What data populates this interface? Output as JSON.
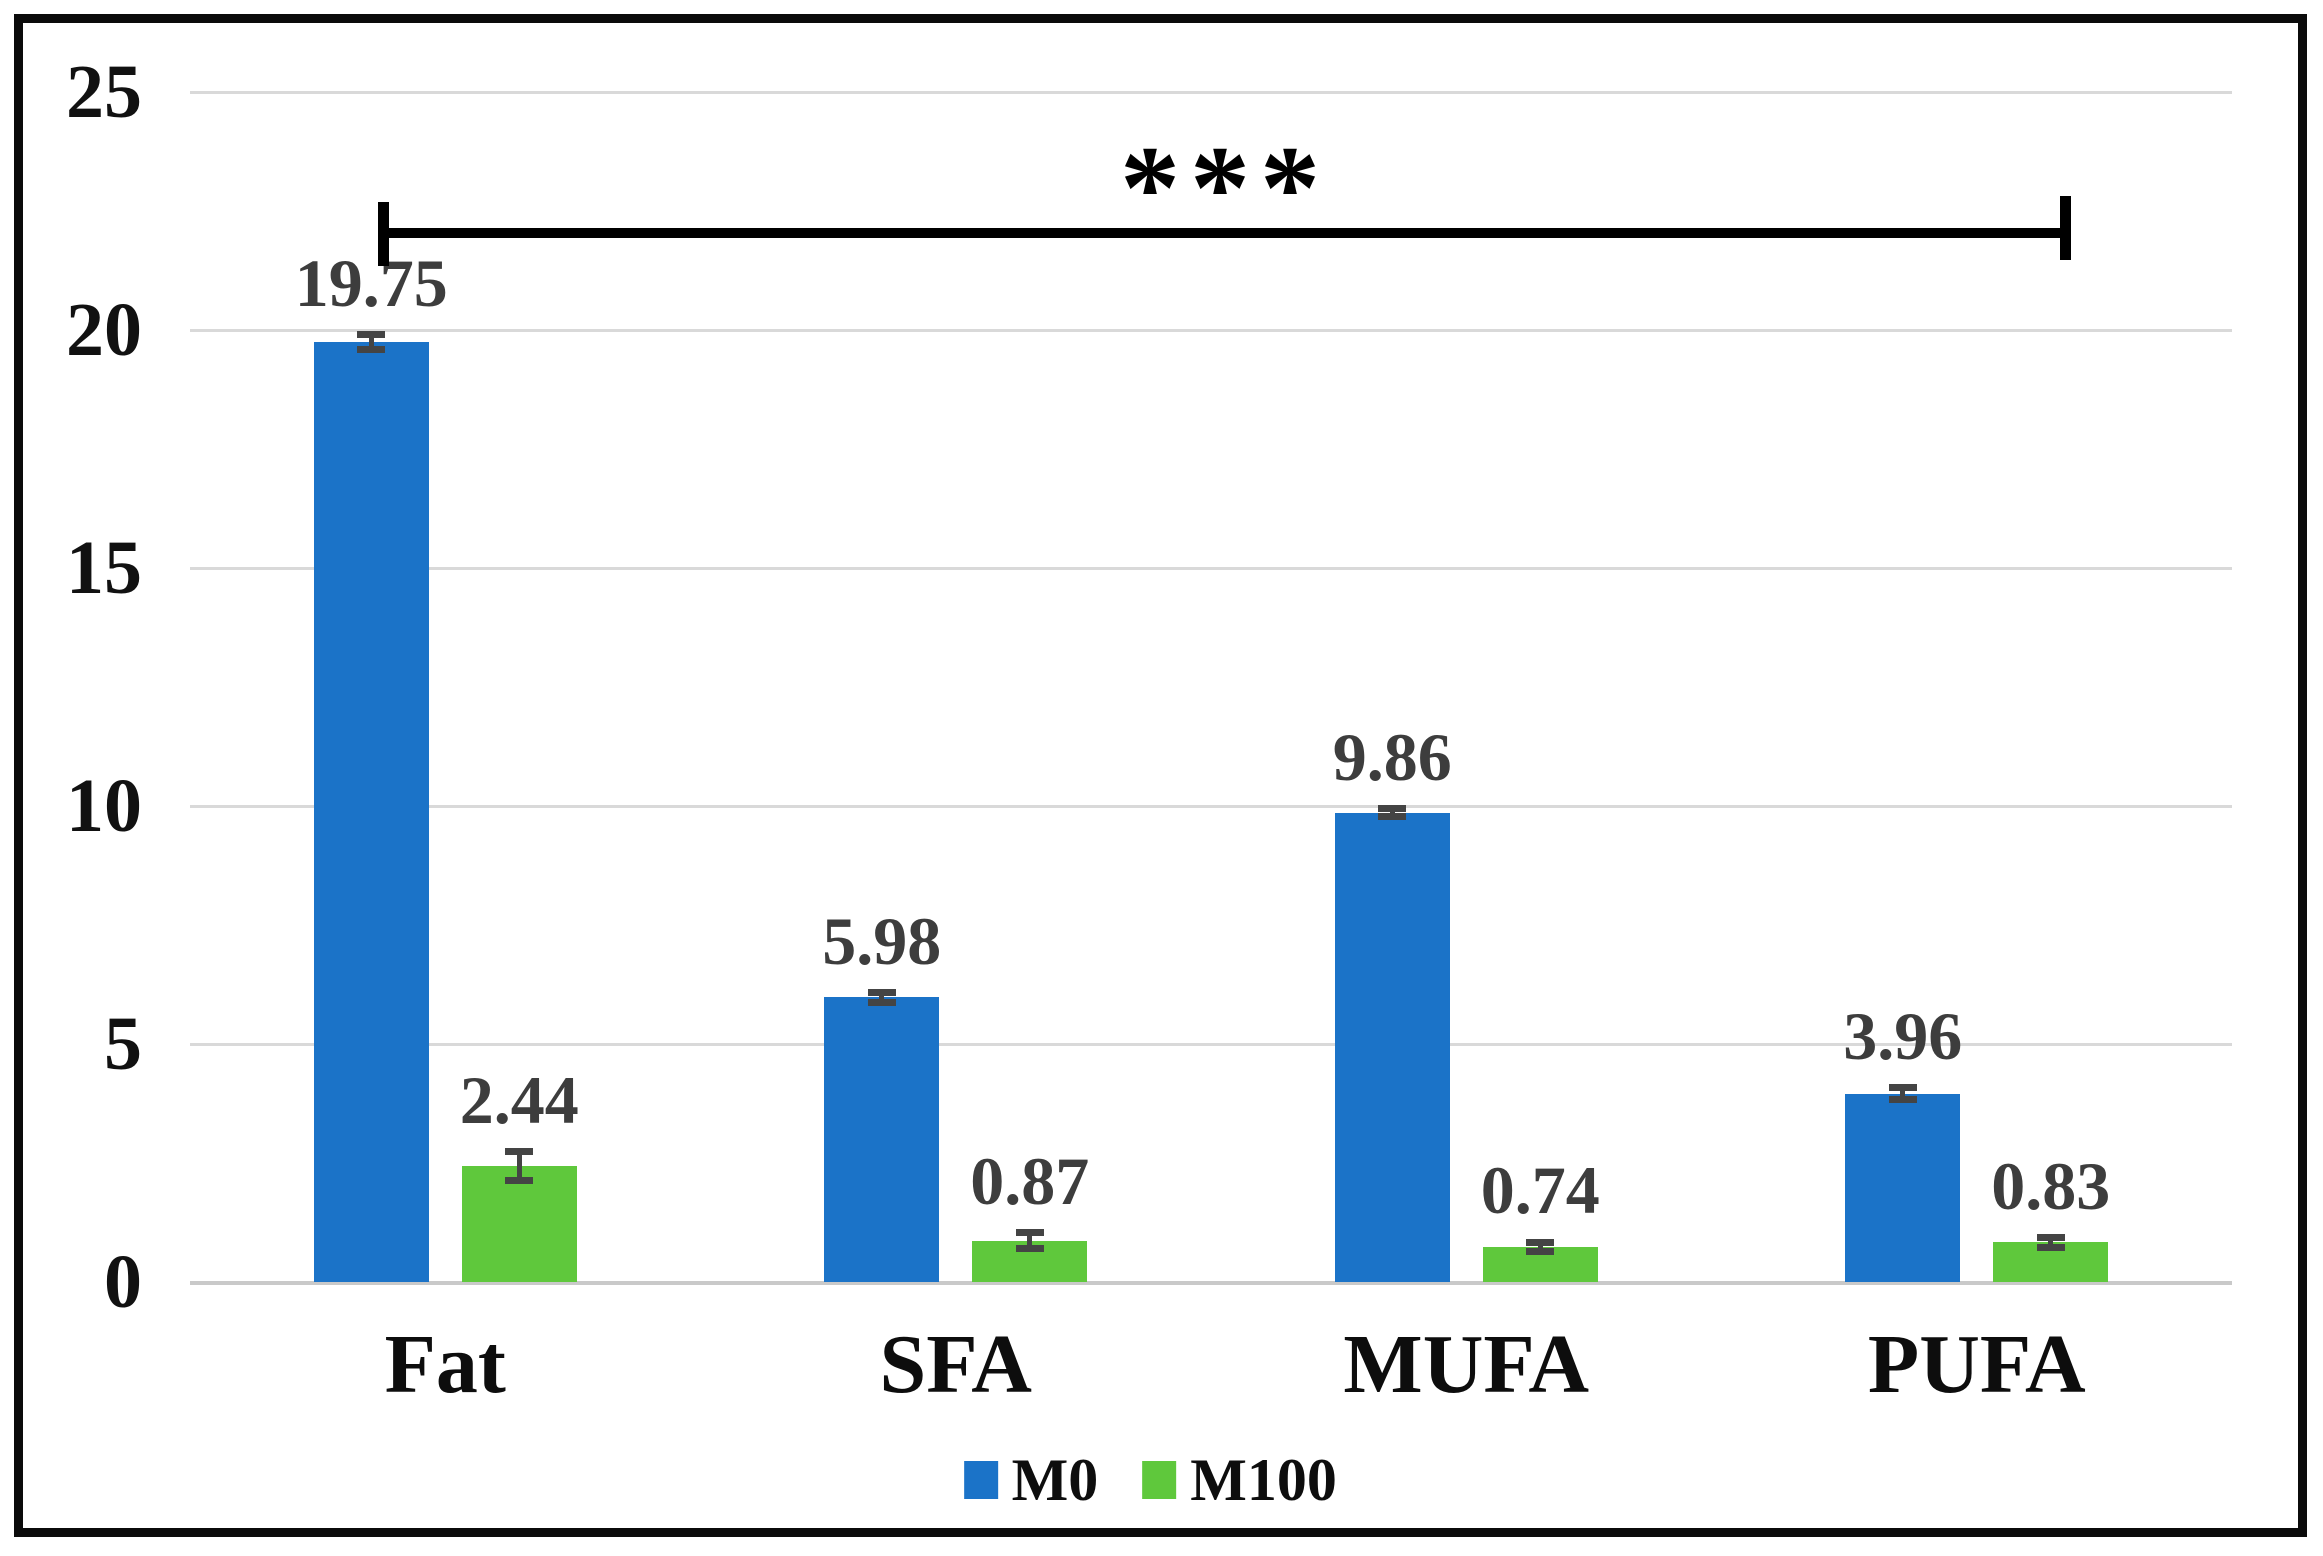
{
  "chart_data": {
    "type": "bar",
    "title": "",
    "xlabel": "",
    "ylabel": "",
    "categories": [
      "Fat",
      "SFA",
      "MUFA",
      "PUFA"
    ],
    "series": [
      {
        "name": "M0",
        "color": "#1B73C8",
        "values": [
          19.75,
          5.98,
          9.86,
          3.96
        ],
        "errors": [
          0.15,
          0.1,
          0.08,
          0.12
        ]
      },
      {
        "name": "M100",
        "color": "#5FC83C",
        "values": [
          2.44,
          0.87,
          0.74,
          0.83
        ],
        "errors": [
          0.3,
          0.16,
          0.1,
          0.1
        ]
      }
    ],
    "value_label_format": "2dp",
    "ylim": [
      0,
      25
    ],
    "yticks": [
      "0",
      "5",
      "10",
      "15",
      "20",
      "25"
    ],
    "grid": true,
    "legend_position": "bottom",
    "annotation": {
      "label": "***",
      "note": "significance bracket spanning Fat group to PUFA group"
    },
    "colors": {
      "gridline": "#D9D9D9",
      "axis_line": "#C9C9C9",
      "error_bar": "#444444",
      "value_label": "#3D3D3D",
      "tick_label": "#111111",
      "bracket": "#000000",
      "frame_border": "#0b0b0b"
    }
  }
}
